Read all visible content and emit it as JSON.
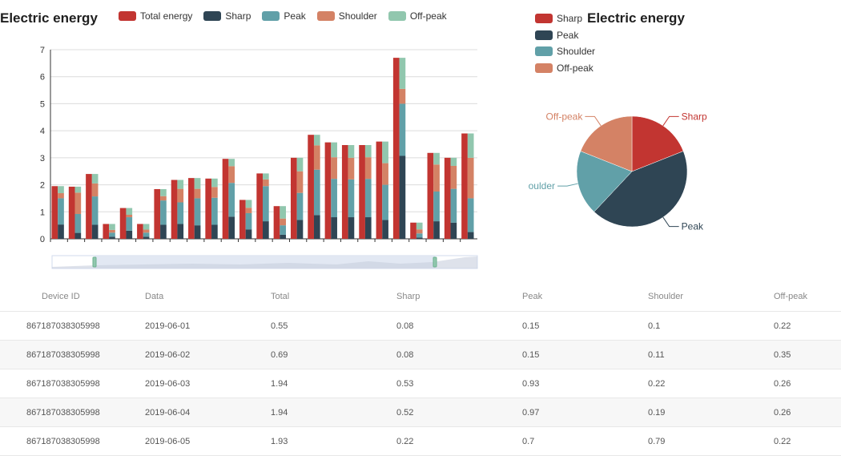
{
  "bar_chart": {
    "title": "Electric energy",
    "legend": [
      "Total energy",
      "Sharp",
      "Peak",
      "Shoulder",
      "Off-peak"
    ]
  },
  "pie_chart": {
    "title": "Electric energy",
    "legend": [
      "Sharp",
      "Peak",
      "Shoulder",
      "Off-peak"
    ],
    "labels": [
      "Sharp",
      "Peak",
      "oulder",
      "Off-peak"
    ]
  },
  "colors": {
    "total": "#c23531",
    "sharp": "#2f4554",
    "peak": "#61a0a8",
    "shoulder": "#d48265",
    "offpeak": "#91c7ae"
  },
  "table": {
    "headers": [
      "Device ID",
      "Data",
      "Total",
      "Sharp",
      "Peak",
      "Shoulder",
      "Off-peak"
    ],
    "rows": [
      [
        "867187038305998",
        "2019-06-01",
        "0.55",
        "0.08",
        "0.15",
        "0.1",
        "0.22"
      ],
      [
        "867187038305998",
        "2019-06-02",
        "0.69",
        "0.08",
        "0.15",
        "0.11",
        "0.35"
      ],
      [
        "867187038305998",
        "2019-06-03",
        "1.94",
        "0.53",
        "0.93",
        "0.22",
        "0.26"
      ],
      [
        "867187038305998",
        "2019-06-04",
        "1.94",
        "0.52",
        "0.97",
        "0.19",
        "0.26"
      ],
      [
        "867187038305998",
        "2019-06-05",
        "1.93",
        "0.22",
        "0.7",
        "0.79",
        "0.22"
      ]
    ]
  },
  "chart_data": [
    {
      "type": "bar",
      "title": "Electric energy",
      "ylim": [
        0,
        7
      ],
      "yticks": [
        0,
        1,
        2,
        3,
        4,
        5,
        6,
        7
      ],
      "grid": true,
      "legend_position": "top",
      "series": [
        {
          "name": "Total energy",
          "values": [
            1.95,
            1.93,
            2.4,
            0.55,
            1.14,
            0.55,
            1.84,
            2.18,
            2.25,
            2.23,
            2.96,
            1.44,
            2.42,
            1.21,
            3.0,
            3.85,
            3.57,
            3.47,
            3.47,
            3.6,
            6.7,
            0.6,
            3.18,
            3.0,
            3.9
          ]
        },
        {
          "name": "Sharp",
          "values": [
            0.53,
            0.22,
            0.52,
            0.08,
            0.3,
            0.08,
            0.52,
            0.55,
            0.5,
            0.52,
            0.82,
            0.35,
            0.65,
            0.15,
            0.7,
            0.88,
            0.8,
            0.8,
            0.8,
            0.7,
            3.07,
            0.05,
            0.65,
            0.6,
            0.25
          ]
        },
        {
          "name": "Peak",
          "values": [
            0.97,
            0.7,
            1.05,
            0.15,
            0.5,
            0.15,
            0.9,
            0.8,
            1.0,
            1.0,
            1.25,
            0.6,
            1.3,
            0.35,
            1.0,
            1.68,
            1.42,
            1.4,
            1.42,
            1.3,
            1.93,
            0.15,
            1.1,
            1.25,
            1.25
          ]
        },
        {
          "name": "Shoulder",
          "values": [
            0.19,
            0.79,
            0.48,
            0.1,
            0.09,
            0.11,
            0.16,
            0.5,
            0.35,
            0.4,
            0.62,
            0.2,
            0.25,
            0.25,
            0.8,
            0.9,
            0.8,
            0.8,
            0.8,
            0.8,
            0.55,
            0.15,
            1.0,
            0.85,
            1.5
          ]
        },
        {
          "name": "Off-peak",
          "values": [
            0.26,
            0.22,
            0.35,
            0.22,
            0.25,
            0.21,
            0.26,
            0.33,
            0.4,
            0.31,
            0.27,
            0.29,
            0.22,
            0.46,
            0.5,
            0.39,
            0.55,
            0.47,
            0.45,
            0.8,
            1.15,
            0.25,
            0.43,
            0.3,
            0.9
          ]
        }
      ]
    },
    {
      "type": "pie",
      "title": "Electric energy",
      "categories": [
        "Sharp",
        "Peak",
        "Shoulder",
        "Off-peak"
      ],
      "values": [
        0.19,
        0.43,
        0.19,
        0.19
      ]
    }
  ]
}
